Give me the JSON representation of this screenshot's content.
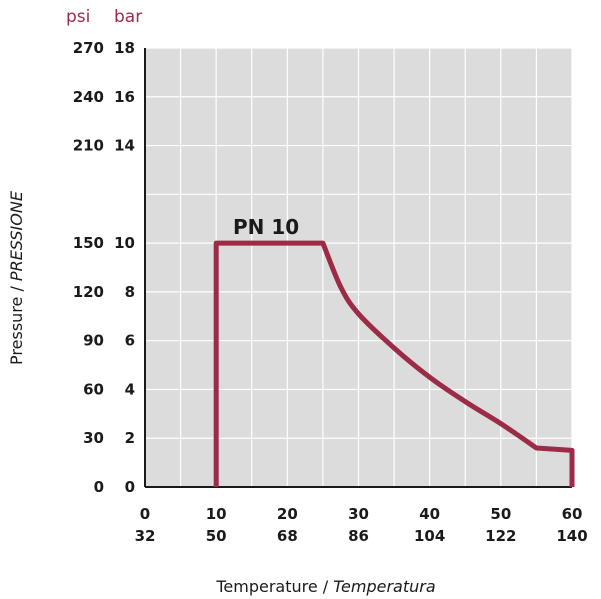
{
  "chart_data": {
    "type": "line",
    "units": {
      "psi": "psi",
      "bar": "bar"
    },
    "ylabel": {
      "regular": "Pressure / ",
      "italic": "PRESSIONE"
    },
    "xlabel": {
      "regular": "Temperature / ",
      "italic": "Temperatura"
    },
    "series_label": "PN 10",
    "xlim": [
      0,
      60
    ],
    "ylim": [
      0,
      18
    ],
    "x_ticks": [
      {
        "value": 0,
        "celsius": "0",
        "fahrenheit": "32"
      },
      {
        "value": 10,
        "celsius": "10",
        "fahrenheit": "50"
      },
      {
        "value": 20,
        "celsius": "20",
        "fahrenheit": "68"
      },
      {
        "value": 30,
        "celsius": "30",
        "fahrenheit": "86"
      },
      {
        "value": 40,
        "celsius": "40",
        "fahrenheit": "104"
      },
      {
        "value": 50,
        "celsius": "50",
        "fahrenheit": "122"
      },
      {
        "value": 60,
        "celsius": "60",
        "fahrenheit": "140"
      }
    ],
    "y_ticks": [
      {
        "value": 0,
        "psi": "0",
        "bar": "0"
      },
      {
        "value": 2,
        "psi": "30",
        "bar": "2"
      },
      {
        "value": 4,
        "psi": "60",
        "bar": "4"
      },
      {
        "value": 6,
        "psi": "90",
        "bar": "6"
      },
      {
        "value": 8,
        "psi": "120",
        "bar": "8"
      },
      {
        "value": 10,
        "psi": "150",
        "bar": "10"
      },
      {
        "value": 14,
        "psi": "210",
        "bar": "14"
      },
      {
        "value": 16,
        "psi": "240",
        "bar": "16"
      },
      {
        "value": 18,
        "psi": "270",
        "bar": "18"
      }
    ],
    "x_grid": [
      0,
      5,
      10,
      15,
      20,
      25,
      30,
      35,
      40,
      45,
      50,
      55,
      60
    ],
    "y_grid": [
      0,
      2,
      4,
      6,
      8,
      10,
      12,
      14,
      16,
      18
    ],
    "series": [
      {
        "points": [
          {
            "x": 10,
            "y": 0
          },
          {
            "x": 10,
            "y": 10
          },
          {
            "x": 25,
            "y": 10
          },
          {
            "x": 27.5,
            "y": 8.2
          },
          {
            "x": 30,
            "y": 7.1
          },
          {
            "x": 35,
            "y": 5.7
          },
          {
            "x": 40,
            "y": 4.5
          },
          {
            "x": 45,
            "y": 3.5
          },
          {
            "x": 50,
            "y": 2.6
          },
          {
            "x": 55,
            "y": 1.6
          },
          {
            "x": 60,
            "y": 1.5
          },
          {
            "x": 60,
            "y": 0
          }
        ]
      }
    ],
    "grid": true,
    "colors": {
      "series": "#9b2b47",
      "plot_background": "#dcdcdc",
      "grid": "#ffffff",
      "units": "#9b2b47"
    }
  }
}
